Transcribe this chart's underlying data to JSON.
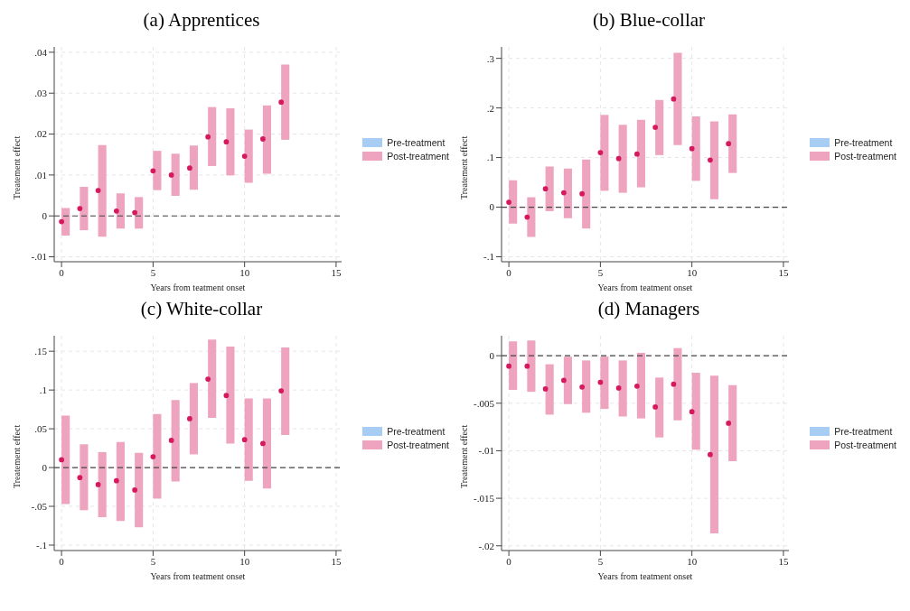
{
  "chart_data": [
    {
      "type": "bar",
      "title": "(a) Apprentices",
      "xlabel": "Years from teatment onset",
      "ylabel": "Treatement effect",
      "x": [
        0,
        1,
        2,
        3,
        4,
        5,
        6,
        7,
        8,
        9,
        10,
        11,
        12
      ],
      "xlim": [
        -0.4,
        15.3
      ],
      "xticks": [
        0,
        5,
        10,
        15
      ],
      "ylim": [
        -0.0112,
        0.0413
      ],
      "yticks": [
        {
          "value": -0.01,
          "label": "-.01"
        },
        {
          "value": 0,
          "label": "0"
        },
        {
          "value": 0.01,
          "label": ".01"
        },
        {
          "value": 0.02,
          "label": ".02"
        },
        {
          "value": 0.03,
          "label": ".03"
        },
        {
          "value": 0.04,
          "label": ".04"
        }
      ],
      "grid": true,
      "legend": "right",
      "marker": "circle",
      "ref_lines": [
        {
          "axis": "y",
          "value": 0,
          "line_style": "dashed",
          "color": "#444444"
        }
      ],
      "series": [
        {
          "type": "bar",
          "name": "Pre-treatment",
          "color": "#a8cdf5",
          "values": [
            null,
            null,
            null,
            null,
            null,
            null,
            null,
            null,
            null,
            null,
            null,
            null,
            null
          ]
        },
        {
          "name": "Post-treatment",
          "color": "#eea3bf",
          "base": [
            -0.0048,
            -0.0035,
            -0.0051,
            -0.0031,
            -0.0031,
            0.0063,
            0.0049,
            0.0064,
            0.0122,
            0.0099,
            0.0081,
            0.0103,
            0.0186
          ],
          "values": [
            0.0067,
            0.0106,
            0.0224,
            0.0086,
            0.0077,
            0.0096,
            0.0103,
            0.0108,
            0.0144,
            0.0164,
            0.013,
            0.0167,
            0.0184
          ]
        },
        {
          "type": "scatter",
          "color": "#d6185e",
          "values": [
            -0.0014,
            0.0018,
            0.0062,
            0.0012,
            0.0008,
            0.011,
            0.01,
            0.0117,
            0.0193,
            0.0181,
            0.0146,
            0.0188,
            0.0278
          ]
        }
      ]
    },
    {
      "type": "bar",
      "title": "(b) Blue-collar",
      "xlabel": "Years from teatment onset",
      "ylabel": "Treatement effect",
      "x": [
        0,
        1,
        2,
        3,
        4,
        5,
        6,
        7,
        8,
        9,
        10,
        11,
        12
      ],
      "xlim": [
        -0.4,
        15.3
      ],
      "xticks": [
        0,
        5,
        10,
        15
      ],
      "ylim": [
        -0.11,
        0.323
      ],
      "yticks": [
        {
          "value": -0.1,
          "label": "-.1"
        },
        {
          "value": 0,
          "label": "0"
        },
        {
          "value": 0.1,
          "label": ".1"
        },
        {
          "value": 0.2,
          "label": ".2"
        },
        {
          "value": 0.3,
          "label": ".3"
        }
      ],
      "grid": true,
      "legend": "right",
      "marker": "circle",
      "ref_lines": [
        {
          "axis": "y",
          "value": 0,
          "line_style": "dashed",
          "color": "#444444"
        }
      ],
      "series": [
        {
          "type": "bar",
          "name": "Pre-treatment",
          "color": "#a8cdf5",
          "values": [
            null,
            null,
            null,
            null,
            null,
            null,
            null,
            null,
            null,
            null,
            null,
            null,
            null
          ]
        },
        {
          "name": "Post-treatment",
          "color": "#eea3bf",
          "base": [
            -0.033,
            -0.06,
            -0.008,
            -0.022,
            -0.043,
            0.033,
            0.029,
            0.04,
            0.105,
            0.125,
            0.053,
            0.016,
            0.069
          ],
          "values": [
            0.087,
            0.08,
            0.09,
            0.1,
            0.139,
            0.153,
            0.137,
            0.136,
            0.111,
            0.186,
            0.13,
            0.157,
            0.118
          ]
        },
        {
          "type": "scatter",
          "color": "#d6185e",
          "values": [
            0.01,
            -0.02,
            0.037,
            0.029,
            0.027,
            0.11,
            0.098,
            0.107,
            0.161,
            0.218,
            0.118,
            0.095,
            0.128
          ]
        }
      ]
    },
    {
      "type": "bar",
      "title": "(c) White-collar",
      "xlabel": "Years from teatment onset",
      "ylabel": "Treatement effect",
      "x": [
        0,
        1,
        2,
        3,
        4,
        5,
        6,
        7,
        8,
        9,
        10,
        11,
        12
      ],
      "xlim": [
        -0.4,
        15.3
      ],
      "xticks": [
        0,
        5,
        10,
        15
      ],
      "ylim": [
        -0.107,
        0.17
      ],
      "yticks": [
        {
          "value": -0.1,
          "label": "-.1"
        },
        {
          "value": -0.05,
          "label": "-.05"
        },
        {
          "value": 0,
          "label": "0"
        },
        {
          "value": 0.05,
          "label": ".05"
        },
        {
          "value": 0.1,
          "label": ".1"
        },
        {
          "value": 0.15,
          "label": ".15"
        }
      ],
      "grid": true,
      "legend": "right",
      "marker": "circle",
      "ref_lines": [
        {
          "axis": "y",
          "value": 0,
          "line_style": "dashed",
          "color": "#444444"
        }
      ],
      "series": [
        {
          "type": "bar",
          "name": "Pre-treatment",
          "color": "#a8cdf5",
          "values": [
            null,
            null,
            null,
            null,
            null,
            null,
            null,
            null,
            null,
            null,
            null,
            null,
            null
          ]
        },
        {
          "name": "Post-treatment",
          "color": "#eea3bf",
          "base": [
            -0.047,
            -0.055,
            -0.064,
            -0.069,
            -0.077,
            -0.04,
            -0.018,
            0.017,
            0.064,
            0.031,
            -0.017,
            -0.027,
            0.042
          ],
          "values": [
            0.114,
            0.085,
            0.084,
            0.102,
            0.096,
            0.109,
            0.105,
            0.092,
            0.101,
            0.125,
            0.106,
            0.116,
            0.113
          ]
        },
        {
          "type": "scatter",
          "color": "#d6185e",
          "values": [
            0.01,
            -0.013,
            -0.022,
            -0.017,
            -0.029,
            0.014,
            0.035,
            0.063,
            0.114,
            0.093,
            0.036,
            0.031,
            0.099
          ]
        }
      ]
    },
    {
      "type": "bar",
      "title": "(d) Managers",
      "xlabel": "Years from teatment onset",
      "ylabel": "Treatement effect",
      "x": [
        0,
        1,
        2,
        3,
        4,
        5,
        6,
        7,
        8,
        9,
        10,
        11,
        12
      ],
      "xlim": [
        -0.4,
        15.3
      ],
      "xticks": [
        0,
        5,
        10,
        15
      ],
      "ylim": [
        -0.0205,
        0.0021
      ],
      "yticks": [
        {
          "value": -0.02,
          "label": "-.02"
        },
        {
          "value": -0.015,
          "label": "-.015"
        },
        {
          "value": -0.01,
          "label": "-.01"
        },
        {
          "value": -0.005,
          "label": "-.005"
        },
        {
          "value": 0,
          "label": "0"
        }
      ],
      "grid": true,
      "legend": "right",
      "marker": "circle",
      "ref_lines": [
        {
          "axis": "y",
          "value": 0,
          "line_style": "dashed",
          "color": "#444444"
        }
      ],
      "series": [
        {
          "type": "bar",
          "name": "Pre-treatment",
          "color": "#a8cdf5",
          "values": [
            null,
            null,
            null,
            null,
            null,
            null,
            null,
            null,
            null,
            null,
            null,
            null,
            null
          ]
        },
        {
          "name": "Post-treatment",
          "color": "#eea3bf",
          "base": [
            -0.0036,
            -0.0038,
            -0.0062,
            -0.0051,
            -0.006,
            -0.0056,
            -0.0064,
            -0.0066,
            -0.0086,
            -0.0068,
            -0.0099,
            -0.0187,
            -0.0111
          ],
          "values": [
            0.0051,
            0.0054,
            0.0053,
            0.005,
            0.0055,
            0.0055,
            0.0059,
            0.0069,
            0.0063,
            0.0076,
            0.0081,
            0.0166,
            0.008
          ]
        },
        {
          "type": "scatter",
          "color": "#d6185e",
          "values": [
            -0.0011,
            -0.0011,
            -0.0035,
            -0.0026,
            -0.0033,
            -0.0028,
            -0.0034,
            -0.0032,
            -0.0054,
            -0.003,
            -0.0059,
            -0.0104,
            -0.0071
          ]
        }
      ]
    }
  ]
}
